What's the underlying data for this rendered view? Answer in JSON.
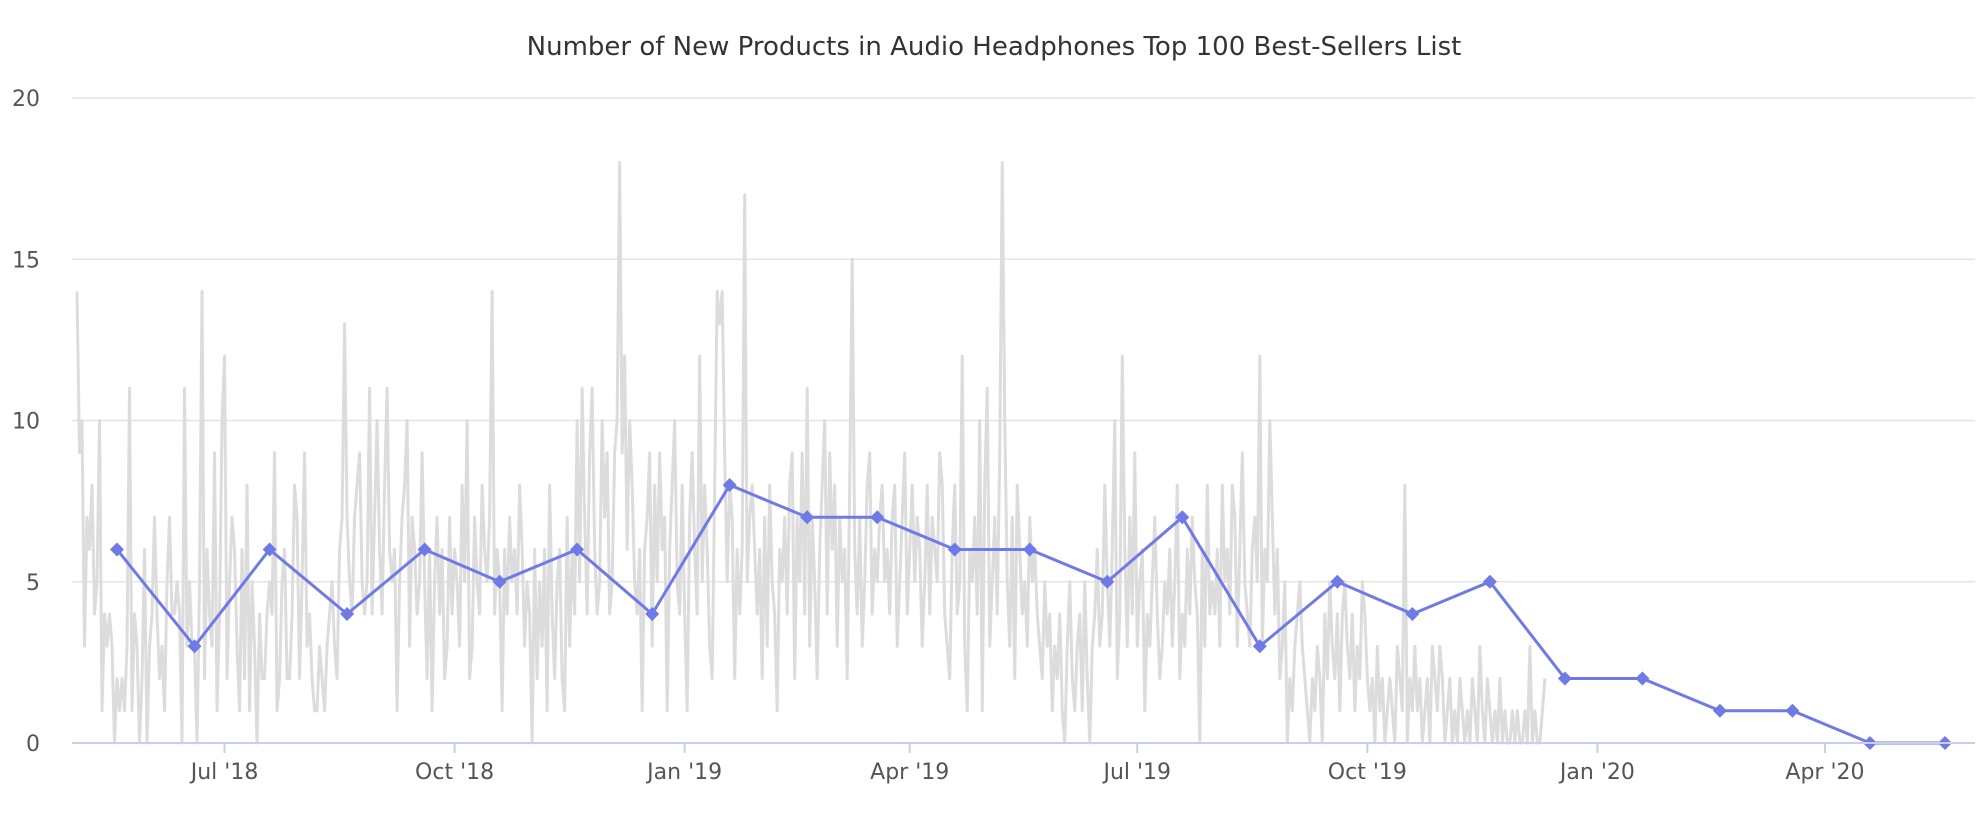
{
  "chart_data": {
    "type": "line",
    "title": "Number of New Products in Audio Headphones Top 100 Best-Sellers List",
    "xlabel": "",
    "ylabel": "",
    "ylim": [
      0,
      20
    ],
    "yticks": [
      0,
      5,
      10,
      15,
      20
    ],
    "xlim": [
      "2018-05-01",
      "2020-05-31"
    ],
    "xticks": [
      {
        "date": "2018-07-01",
        "label": "Jul '18"
      },
      {
        "date": "2018-10-01",
        "label": "Oct '18"
      },
      {
        "date": "2019-01-01",
        "label": "Jan '19"
      },
      {
        "date": "2019-04-01",
        "label": "Apr '19"
      },
      {
        "date": "2019-07-01",
        "label": "Jul '19"
      },
      {
        "date": "2019-10-01",
        "label": "Oct '19"
      },
      {
        "date": "2020-01-01",
        "label": "Jan '20"
      },
      {
        "date": "2020-04-01",
        "label": "Apr '20"
      }
    ],
    "grid": true,
    "legend": "none",
    "series": [
      {
        "style": "daily",
        "color": "#dcdcdc",
        "start": "2018-05-03",
        "values": [
          14,
          9,
          10,
          3,
          7,
          6,
          8,
          4,
          5,
          10,
          1,
          4,
          3,
          4,
          3,
          0,
          2,
          1,
          2,
          1,
          3,
          11,
          1,
          4,
          3,
          0,
          2,
          6,
          0,
          3,
          4,
          7,
          4,
          2,
          3,
          1,
          5,
          7,
          4,
          4,
          5,
          4,
          0,
          11,
          3,
          5,
          3,
          3,
          0,
          5,
          14,
          2,
          6,
          4,
          3,
          9,
          1,
          4,
          10,
          12,
          2,
          5,
          7,
          6,
          3,
          1,
          6,
          2,
          8,
          1,
          5,
          3,
          0,
          4,
          2,
          2,
          4,
          5,
          4,
          9,
          1,
          2,
          5,
          6,
          2,
          2,
          4,
          8,
          7,
          2,
          5,
          9,
          3,
          4,
          2,
          1,
          1,
          3,
          2,
          1,
          3,
          4,
          5,
          3,
          2,
          6,
          7,
          13,
          7,
          5,
          4,
          7,
          8,
          9,
          5,
          4,
          5,
          11,
          4,
          7,
          10,
          6,
          4,
          8,
          11,
          6,
          5,
          6,
          1,
          5,
          7,
          8,
          10,
          3,
          7,
          6,
          4,
          5,
          9,
          5,
          2,
          6,
          1,
          5,
          7,
          4,
          6,
          2,
          3,
          7,
          4,
          6,
          5,
          3,
          8,
          5,
          10,
          2,
          3,
          7,
          5,
          4,
          8,
          6,
          5,
          7,
          14,
          4,
          6,
          5,
          1,
          6,
          4,
          7,
          5,
          6,
          4,
          8,
          6,
          3,
          5,
          4,
          0,
          6,
          2,
          5,
          3,
          6,
          1,
          8,
          4,
          2,
          5,
          6,
          2,
          1,
          7,
          3,
          6,
          4,
          10,
          5,
          11,
          7,
          4,
          9,
          11,
          6,
          4,
          5,
          10,
          7,
          9,
          4,
          5,
          9,
          10,
          18,
          9,
          12,
          6,
          10,
          8,
          5,
          4,
          6,
          1,
          6,
          7,
          9,
          3,
          8,
          5,
          9,
          6,
          7,
          1,
          6,
          8,
          10,
          5,
          4,
          8,
          4,
          1,
          7,
          9,
          6,
          4,
          12,
          5,
          8,
          6,
          3,
          2,
          8,
          14,
          13,
          14,
          9,
          5,
          8,
          7,
          2,
          6,
          4,
          6,
          17,
          5,
          7,
          8,
          6,
          4,
          6,
          2,
          7,
          3,
          8,
          5,
          4,
          1,
          6,
          5,
          7,
          4,
          8,
          9,
          2,
          7,
          5,
          9,
          4,
          11,
          3,
          7,
          5,
          2,
          6,
          8,
          10,
          4,
          9,
          6,
          8,
          3,
          7,
          5,
          6,
          2,
          8,
          15,
          6,
          4,
          7,
          3,
          5,
          8,
          9,
          4,
          6,
          5,
          7,
          8,
          5,
          6,
          4,
          7,
          8,
          3,
          5,
          7,
          9,
          4,
          6,
          8,
          5,
          7,
          6,
          3,
          5,
          8,
          4,
          7,
          6,
          5,
          9,
          8,
          4,
          3,
          2,
          6,
          8,
          4,
          5,
          12,
          3,
          1,
          6,
          5,
          7,
          4,
          10,
          1,
          8,
          11,
          3,
          5,
          7,
          4,
          9,
          18,
          10,
          5,
          3,
          7,
          2,
          8,
          6,
          4,
          5,
          3,
          7,
          5,
          6,
          4,
          3,
          2,
          5,
          3,
          4,
          1,
          3,
          2,
          4,
          1,
          0,
          3,
          5,
          2,
          1,
          3,
          4,
          1,
          5,
          2,
          0,
          3,
          4,
          6,
          3,
          4,
          8,
          5,
          3,
          6,
          10,
          2,
          4,
          12,
          6,
          3,
          7,
          4,
          9,
          3,
          5,
          6,
          1,
          4,
          3,
          5,
          7,
          4,
          2,
          3,
          5,
          4,
          6,
          3,
          5,
          8,
          2,
          4,
          3,
          6,
          4,
          7,
          5,
          4,
          0,
          6,
          3,
          8,
          4,
          5,
          4,
          6,
          3,
          8,
          5,
          6,
          4,
          8,
          7,
          3,
          6,
          9,
          5,
          4,
          3,
          6,
          7,
          5,
          12,
          3,
          6,
          5,
          10,
          7,
          4,
          6,
          2,
          3,
          5,
          0,
          2,
          1,
          3,
          4,
          5,
          3,
          2,
          1,
          0,
          2,
          1,
          3,
          2,
          0,
          4,
          2,
          5,
          3,
          2,
          4,
          1,
          4,
          5,
          3,
          2,
          4,
          1,
          3,
          2,
          5,
          4,
          2,
          1,
          2,
          0,
          3,
          1,
          2,
          0,
          1,
          2,
          1,
          0,
          3,
          2,
          1,
          8,
          0,
          2,
          1,
          3,
          1,
          2,
          0,
          1,
          2,
          0,
          3,
          2,
          1,
          3,
          2,
          0,
          1,
          2,
          0,
          1,
          0,
          2,
          1,
          0,
          1,
          0,
          2,
          1,
          0,
          3,
          1,
          0,
          2,
          1,
          0,
          1,
          0,
          2,
          0,
          1,
          0,
          0,
          1,
          0,
          1,
          0,
          0,
          1,
          0,
          3,
          0,
          1,
          0,
          0,
          1,
          2
        ]
      },
      {
        "style": "monthly",
        "color": "#6f7ae6",
        "marker": "diamond",
        "x": [
          "2018-05-19",
          "2018-06-19",
          "2018-07-19",
          "2018-08-19",
          "2018-09-19",
          "2018-10-19",
          "2018-11-19",
          "2018-12-19",
          "2019-01-19",
          "2019-02-19",
          "2019-03-19",
          "2019-04-19",
          "2019-05-19",
          "2019-06-19",
          "2019-07-19",
          "2019-08-19",
          "2019-09-19",
          "2019-10-19",
          "2019-11-19",
          "2019-12-19",
          "2020-01-19",
          "2020-02-19",
          "2020-03-19",
          "2020-04-19",
          "2020-05-19"
        ],
        "values": [
          6,
          3,
          6,
          4,
          6,
          5,
          6,
          4,
          8,
          7,
          7,
          6,
          6,
          5,
          7,
          3,
          5,
          4,
          5,
          2,
          2,
          1,
          1,
          0,
          0
        ]
      }
    ]
  }
}
